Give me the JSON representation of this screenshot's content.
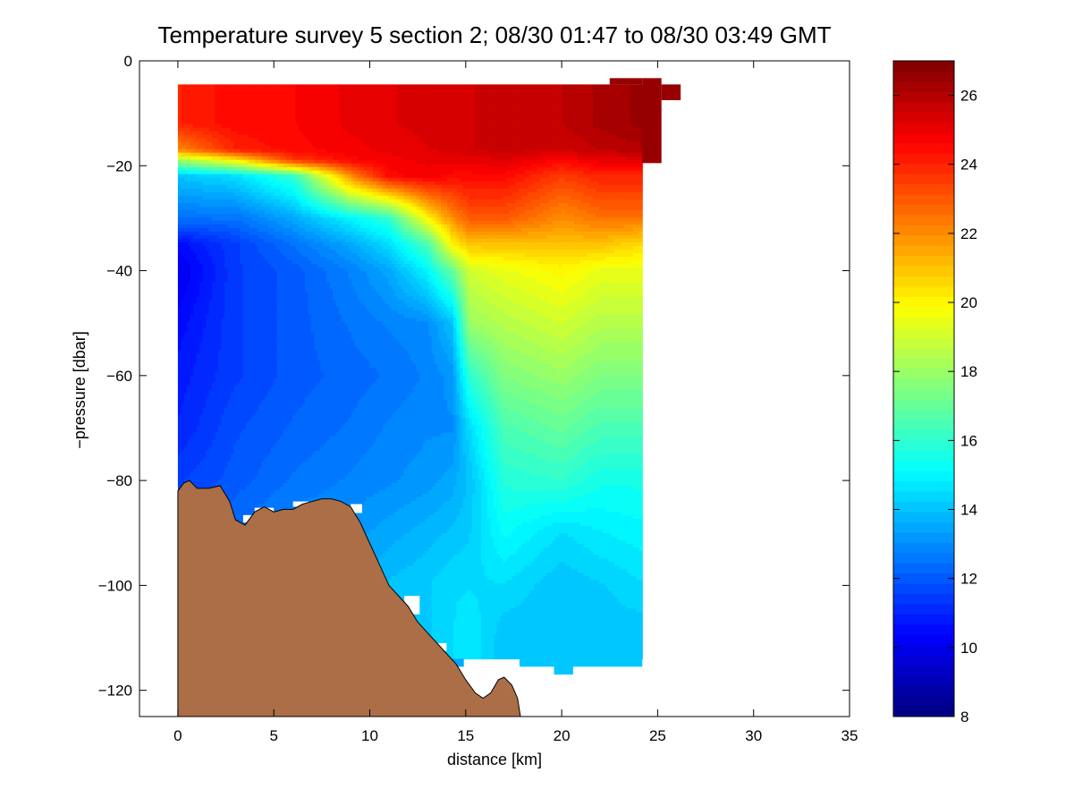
{
  "chart_data": {
    "type": "heatmap",
    "title": "Temperature survey 5 section 2; 08/30 01:47 to 08/30 03:49 GMT",
    "xlabel": "distance [km]",
    "ylabel": "−pressure [dbar]",
    "xlim": [
      -2,
      35
    ],
    "ylim": [
      -125,
      0
    ],
    "xticks": [
      0,
      5,
      10,
      15,
      20,
      25,
      30,
      35
    ],
    "xtick_labels": [
      "0",
      "5",
      "10",
      "15",
      "20",
      "25",
      "30",
      "35"
    ],
    "yticks": [
      0,
      -20,
      -40,
      -60,
      -80,
      -100,
      -120
    ],
    "ytick_labels": [
      "0",
      "−20",
      "−40",
      "−60",
      "−80",
      "−100",
      "−120"
    ],
    "colorbar": {
      "colormap": "jet",
      "range": [
        8,
        27
      ],
      "ticks": [
        8,
        10,
        12,
        14,
        16,
        18,
        20,
        22,
        24,
        26
      ],
      "tick_labels": [
        "8",
        "10",
        "12",
        "14",
        "16",
        "18",
        "20",
        "22",
        "24",
        "26"
      ]
    },
    "data_extent": {
      "x": [
        0,
        24.2
      ],
      "y": [
        -114,
        -4.5
      ]
    },
    "seabed_color": "#ab6e47",
    "seabed_profile": [
      [
        0.0,
        -125
      ],
      [
        0.0,
        -82
      ],
      [
        0.3,
        -80.5
      ],
      [
        0.6,
        -80
      ],
      [
        1.0,
        -81.5
      ],
      [
        1.6,
        -81.5
      ],
      [
        2.2,
        -81
      ],
      [
        2.7,
        -84
      ],
      [
        3.0,
        -87.5
      ],
      [
        3.5,
        -88.5
      ],
      [
        4.0,
        -86
      ],
      [
        4.5,
        -85
      ],
      [
        5.0,
        -86
      ],
      [
        5.5,
        -85.5
      ],
      [
        6.0,
        -85.5
      ],
      [
        6.5,
        -84.5
      ],
      [
        7.0,
        -84
      ],
      [
        7.5,
        -83.5
      ],
      [
        8.0,
        -83.5
      ],
      [
        8.5,
        -84
      ],
      [
        9.0,
        -85
      ],
      [
        9.5,
        -88
      ],
      [
        10.0,
        -92
      ],
      [
        10.5,
        -96
      ],
      [
        11.0,
        -100
      ],
      [
        11.5,
        -102
      ],
      [
        12.0,
        -104
      ],
      [
        12.5,
        -107
      ],
      [
        13.0,
        -109
      ],
      [
        13.5,
        -111
      ],
      [
        14.0,
        -113
      ],
      [
        14.5,
        -115
      ],
      [
        15.0,
        -118
      ],
      [
        15.5,
        -120.5
      ],
      [
        15.9,
        -121.5
      ],
      [
        16.3,
        -120.5
      ],
      [
        16.7,
        -118
      ],
      [
        17.0,
        -117.5
      ],
      [
        17.4,
        -119
      ],
      [
        17.7,
        -121.5
      ],
      [
        17.85,
        -125
      ]
    ],
    "temperature_field": {
      "z_points": [
        -4.5,
        -12,
        -17,
        -19,
        -22,
        -30,
        -35,
        -40,
        -50,
        -60,
        -70,
        -80,
        -90,
        -100,
        -110,
        -114
      ],
      "columns": [
        {
          "x": 0,
          "t": [
            24.0,
            24.0,
            22.0,
            18.0,
            14.0,
            12.5,
            10.5,
            10.0,
            10.5,
            10.8,
            11.0,
            11.5,
            12.0,
            12.5,
            13.0,
            13.0
          ]
        },
        {
          "x": 3,
          "t": [
            24.5,
            24.5,
            24.0,
            20.0,
            14.5,
            12.5,
            11.5,
            11.5,
            11.5,
            11.5,
            11.8,
            12.0,
            12.5,
            13.0,
            13.2,
            13.2
          ]
        },
        {
          "x": 6,
          "t": [
            24.6,
            24.6,
            24.5,
            23.5,
            16.0,
            13.5,
            12.5,
            12.0,
            12.0,
            12.0,
            12.2,
            12.5,
            13.0,
            13.2,
            13.5,
            13.5
          ]
        },
        {
          "x": 9,
          "t": [
            25.0,
            25.0,
            24.8,
            24.5,
            22.0,
            15.0,
            13.5,
            12.8,
            12.5,
            12.3,
            12.5,
            12.8,
            13.2,
            13.5,
            13.8,
            13.8
          ]
        },
        {
          "x": 11,
          "t": [
            25.2,
            25.2,
            25.0,
            24.8,
            24.5,
            16.0,
            14.5,
            13.5,
            12.8,
            12.5,
            12.8,
            13.0,
            13.5,
            14.0,
            14.0,
            14.0
          ]
        },
        {
          "x": 13,
          "t": [
            25.3,
            25.3,
            25.2,
            25.0,
            24.8,
            20.0,
            16.5,
            15.0,
            13.0,
            12.8,
            13.0,
            13.2,
            13.8,
            14.2,
            14.2,
            14.2
          ]
        },
        {
          "x": 14.3,
          "t": [
            25.4,
            25.4,
            25.3,
            25.0,
            24.5,
            22.0,
            20.0,
            17.0,
            14.0,
            13.2,
            13.0,
            13.5,
            14.0,
            14.5,
            14.5,
            14.5
          ]
        },
        {
          "x": 15.2,
          "t": [
            25.5,
            25.5,
            25.5,
            25.0,
            24.5,
            23.0,
            21.0,
            19.0,
            18.0,
            16.0,
            14.5,
            14.0,
            14.2,
            14.5,
            14.8,
            14.8
          ]
        },
        {
          "x": 17,
          "t": [
            25.6,
            25.6,
            25.6,
            25.2,
            24.5,
            23.0,
            21.0,
            19.5,
            18.5,
            17.5,
            16.5,
            15.8,
            15.2,
            14.5,
            14.0,
            14.0
          ]
        },
        {
          "x": 20,
          "t": [
            25.8,
            25.8,
            25.5,
            24.5,
            23.5,
            22.0,
            21.0,
            20.0,
            19.0,
            18.0,
            17.0,
            16.0,
            14.5,
            14.0,
            14.0,
            14.0
          ]
        },
        {
          "x": 22,
          "t": [
            26.2,
            26.2,
            25.8,
            25.0,
            24.0,
            22.5,
            21.0,
            19.5,
            18.5,
            17.5,
            16.5,
            15.5,
            14.8,
            14.2,
            14.0,
            14.0
          ]
        },
        {
          "x": 24.2,
          "t": [
            26.5,
            26.5,
            26.0,
            25.0,
            24.0,
            22.5,
            20.5,
            19.5,
            18.5,
            17.5,
            16.5,
            15.5,
            15.0,
            14.5,
            14.0,
            14.0
          ]
        }
      ]
    },
    "extra_cells": [
      {
        "x": [
          22.5,
          24.2
        ],
        "y": [
          -4.5,
          -3.3
        ],
        "t": 26.5
      },
      {
        "x": [
          24.2,
          25.2
        ],
        "y": [
          -19.5,
          -3.3
        ],
        "t": 26.5
      },
      {
        "x": [
          25.2,
          26.2
        ],
        "y": [
          -7.5,
          -4.5
        ],
        "t": 26.5
      },
      {
        "x": [
          14.0,
          14.9
        ],
        "y": [
          -115.5,
          -114
        ],
        "t": 13.5
      },
      {
        "x": [
          17.8,
          19.6
        ],
        "y": [
          -115.5,
          -114
        ],
        "t": 14.0
      },
      {
        "x": [
          19.6,
          20.6
        ],
        "y": [
          -117,
          -114
        ],
        "t": 14.0
      },
      {
        "x": [
          20.6,
          24.2
        ],
        "y": [
          -115.5,
          -114
        ],
        "t": 14.2
      }
    ],
    "white_gaps": [
      {
        "x": [
          3.4,
          4.0
        ],
        "y": [
          -88,
          -86.6
        ]
      },
      {
        "x": [
          4.0,
          5.0
        ],
        "y": [
          -86.2,
          -85.2
        ]
      },
      {
        "x": [
          6.0,
          6.8
        ],
        "y": [
          -85,
          -84
        ]
      },
      {
        "x": [
          9.0,
          9.6
        ],
        "y": [
          -86.2,
          -84.5
        ]
      },
      {
        "x": [
          11.8,
          12.6
        ],
        "y": [
          -105.5,
          -102
        ]
      },
      {
        "x": [
          13.4,
          14.0
        ],
        "y": [
          -112.5,
          -111
        ]
      }
    ]
  }
}
